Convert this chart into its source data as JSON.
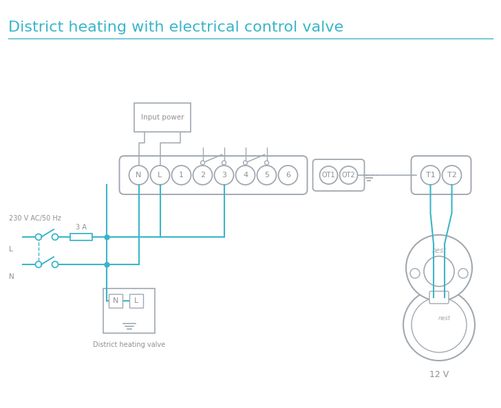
{
  "title": "District heating with electrical control valve",
  "title_color": "#3ab5c8",
  "title_fontsize": 16,
  "bg_color": "#ffffff",
  "line_color": "#3ab5c8",
  "gray": "#a0a8b0",
  "dark_gray": "#909090",
  "figsize": [
    7.28,
    5.94
  ],
  "dpi": 100,
  "main_labels": [
    "N",
    "L",
    "1",
    "2",
    "3",
    "4",
    "5",
    "6"
  ],
  "ot_labels": [
    "OT1",
    "OT2"
  ],
  "t_labels": [
    "T1",
    "T2"
  ]
}
